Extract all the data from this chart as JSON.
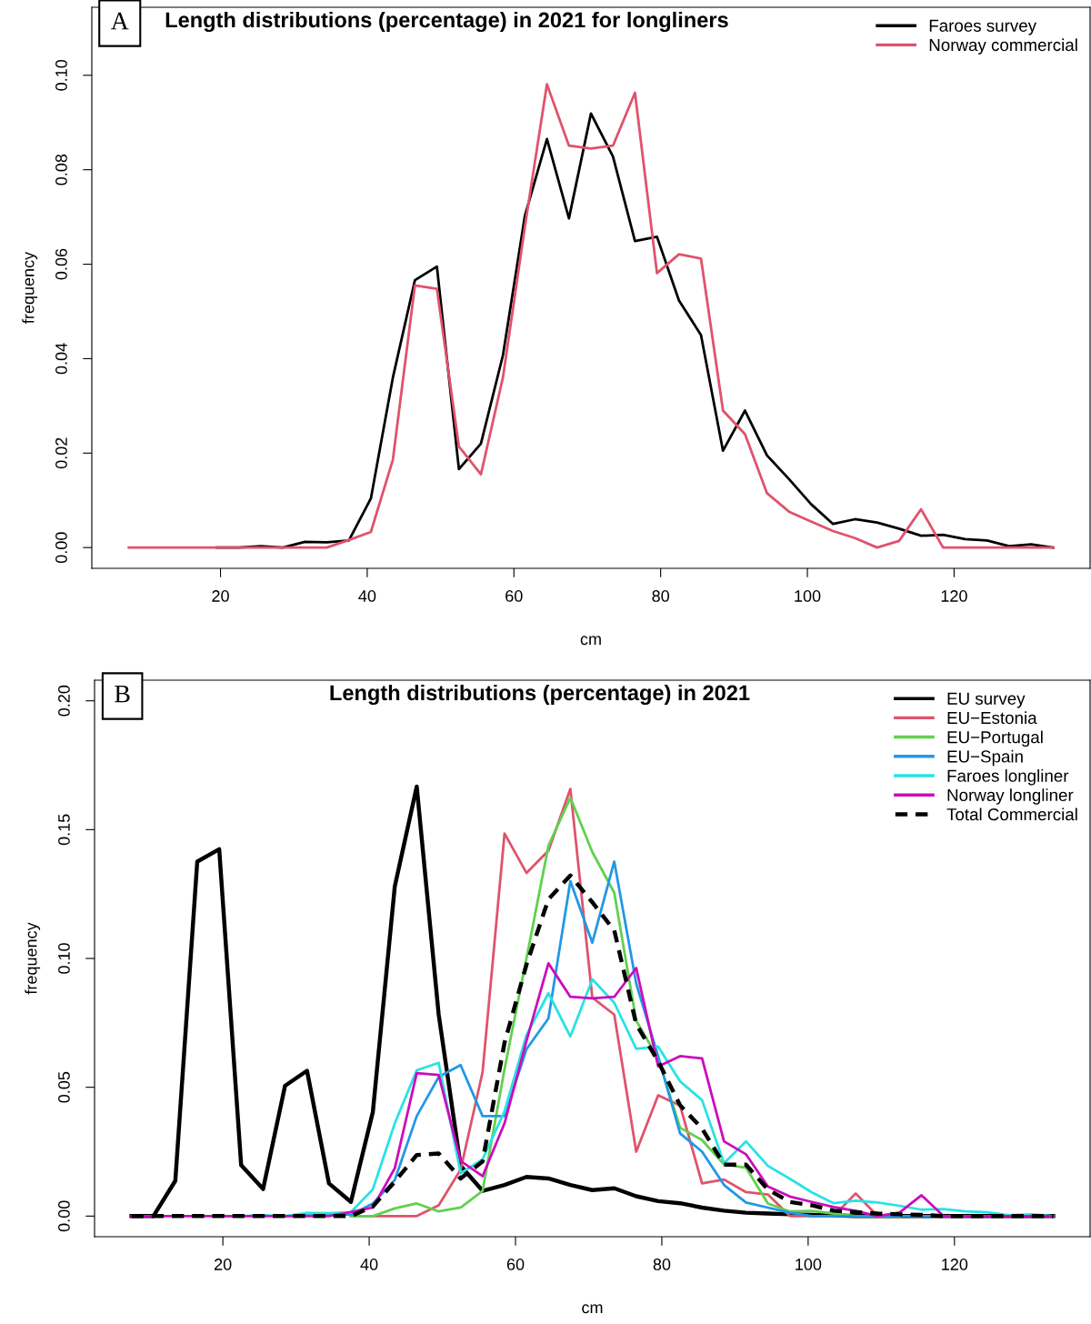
{
  "chart_data": [
    {
      "type": "line",
      "title": "Length distributions (percentage) in 2021 for longliners",
      "xlabel": "cm",
      "ylabel": "frequency",
      "annotations": [
        "A"
      ],
      "legend": "top right",
      "grid": false,
      "marker": "none",
      "x": [
        7.5,
        10.5,
        13.5,
        16.5,
        19.5,
        22.5,
        25.5,
        28.5,
        31.5,
        34.5,
        37.5,
        40.5,
        43.5,
        46.5,
        49.5,
        52.5,
        55.5,
        58.5,
        61.5,
        64.5,
        67.5,
        70.5,
        73.5,
        76.5,
        79.5,
        82.5,
        85.5,
        88.5,
        91.5,
        94.5,
        97.5,
        100.5,
        103.5,
        106.5,
        109.5,
        112.5,
        115.5,
        118.5,
        121.5,
        124.5,
        127.5,
        130.5,
        133.5
      ],
      "xlim": [
        2.46,
        138.54
      ],
      "xticks": [
        20,
        40,
        60,
        80,
        100,
        120
      ],
      "ylim": [
        -0.0044,
        0.1144
      ],
      "yticks": [
        {
          "value": 0,
          "label": "0.00"
        },
        {
          "value": 0.02,
          "label": "0.02"
        },
        {
          "value": 0.04,
          "label": "0.04"
        },
        {
          "value": 0.06,
          "label": "0.06"
        },
        {
          "value": 0.08,
          "label": "0.08"
        },
        {
          "value": 0.1,
          "label": "0.10"
        }
      ],
      "series": [
        {
          "name": "Faroes survey",
          "color": "#000000",
          "line_style": "solid",
          "values": [
            null,
            null,
            null,
            null,
            0,
            0,
            0.0003,
            0,
            0.0012,
            0.0011,
            0.0015,
            0.0104,
            0.036,
            0.0566,
            0.0595,
            0.0166,
            0.022,
            0.0407,
            0.0703,
            0.0865,
            0.0697,
            0.0919,
            0.0828,
            0.0649,
            0.0658,
            0.0523,
            0.045,
            0.0205,
            0.029,
            0.0195,
            0.0145,
            0.0092,
            0.005,
            0.006,
            0.0053,
            0.004,
            0.0025,
            0.0027,
            0.0018,
            0.0015,
            0.0003,
            0.0007,
            0
          ]
        },
        {
          "name": "Norway commercial",
          "color": "#df536b",
          "line_style": "solid",
          "values": [
            0,
            0,
            0,
            0,
            0,
            0,
            0,
            0,
            0,
            0,
            0.0016,
            0.0033,
            0.0186,
            0.0555,
            0.0548,
            0.0214,
            0.0155,
            0.036,
            0.068,
            0.0981,
            0.0851,
            0.0845,
            0.0851,
            0.0963,
            0.0581,
            0.0621,
            0.0612,
            0.029,
            0.024,
            0.0115,
            0.0076,
            0.0055,
            0.0035,
            0.002,
            0,
            0.0014,
            0.0081,
            0,
            0,
            0,
            0,
            0,
            0
          ]
        }
      ]
    },
    {
      "type": "line",
      "title": "Length distributions (percentage) in 2021",
      "xlabel": "cm",
      "ylabel": "frequency",
      "annotations": [
        "B"
      ],
      "legend": "top right",
      "grid": false,
      "marker": "none",
      "x": [
        7.5,
        10.5,
        13.5,
        16.5,
        19.5,
        22.5,
        25.5,
        28.5,
        31.5,
        34.5,
        37.5,
        40.5,
        43.5,
        46.5,
        49.5,
        52.5,
        55.5,
        58.5,
        61.5,
        64.5,
        67.5,
        70.5,
        73.5,
        76.5,
        79.5,
        82.5,
        85.5,
        88.5,
        91.5,
        94.5,
        97.5,
        100.5,
        103.5,
        106.5,
        109.5,
        112.5,
        115.5,
        118.5,
        121.5,
        124.5,
        127.5,
        130.5,
        133.5
      ],
      "xlim": [
        2.46,
        138.54
      ],
      "xticks": [
        20,
        40,
        60,
        80,
        100,
        120
      ],
      "ylim": [
        -0.008,
        0.208
      ],
      "yticks": [
        {
          "value": 0,
          "label": "0.00"
        },
        {
          "value": 0.05,
          "label": "0.05"
        },
        {
          "value": 0.1,
          "label": "0.10"
        },
        {
          "value": 0.15,
          "label": "0.15"
        },
        {
          "value": 0.2,
          "label": "0.20"
        }
      ],
      "series": [
        {
          "name": "EU survey",
          "color": "#000000",
          "line_style": "solid",
          "values": [
            0,
            0,
            0.0137,
            0.1376,
            0.1424,
            0.0198,
            0.0105,
            0.0506,
            0.0564,
            0.0127,
            0.0055,
            0.0404,
            0.128,
            0.1667,
            0.0782,
            0.0195,
            0.0098,
            0.0121,
            0.0152,
            0.0146,
            0.0121,
            0.0101,
            0.0108,
            0.0077,
            0.0058,
            0.005,
            0.0033,
            0.0021,
            0.0013,
            0.001,
            0.0007,
            0.0005,
            0.0003,
            0,
            0,
            0,
            0,
            0,
            0,
            0,
            0,
            0,
            0
          ]
        },
        {
          "name": "EU−Estonia",
          "color": "#df536b",
          "line_style": "solid",
          "values": [
            null,
            null,
            null,
            null,
            null,
            null,
            null,
            null,
            null,
            null,
            0,
            0,
            0,
            0,
            0.0042,
            0.018,
            0.0559,
            0.1485,
            0.1332,
            0.1418,
            0.1658,
            0.0848,
            0.0782,
            0.025,
            0.0469,
            0.0429,
            0.0127,
            0.0142,
            0.0093,
            0.0084,
            0,
            0,
            0,
            0.0088,
            0,
            0,
            null,
            null,
            null,
            null,
            null,
            null,
            null
          ]
        },
        {
          "name": "EU−Portugal",
          "color": "#61d04f",
          "line_style": "solid",
          "values": [
            null,
            null,
            null,
            null,
            null,
            null,
            null,
            null,
            null,
            null,
            0,
            0,
            0.003,
            0.0049,
            0.0018,
            0.0033,
            0.0098,
            0.057,
            0.1,
            0.1437,
            0.1624,
            0.1413,
            0.1255,
            0.0758,
            0.0612,
            0.0343,
            0.0295,
            0.02,
            0.0188,
            0.0049,
            0.0018,
            0.002,
            0.001,
            0,
            0,
            0,
            null,
            null,
            null,
            null,
            null,
            null,
            null
          ]
        },
        {
          "name": "EU−Spain",
          "color": "#2297e6",
          "line_style": "solid",
          "values": [
            null,
            null,
            null,
            null,
            null,
            null,
            null,
            0,
            0.0005,
            0.001,
            0.0005,
            0.0049,
            0.014,
            0.0388,
            0.054,
            0.0586,
            0.0388,
            0.0388,
            0.0648,
            0.0767,
            0.13,
            0.1061,
            0.1376,
            0.0903,
            0.062,
            0.0321,
            0.025,
            0.0121,
            0.0053,
            0.0033,
            0.0013,
            0,
            0,
            0,
            0,
            0,
            0,
            0,
            0,
            null,
            null,
            null,
            null
          ]
        },
        {
          "name": "Faroes longliner",
          "color": "#28e2e5",
          "line_style": "solid",
          "values": [
            null,
            null,
            null,
            null,
            0,
            0,
            0.0003,
            0,
            0.0012,
            0.0011,
            0.0015,
            0.0104,
            0.036,
            0.0566,
            0.0595,
            0.0166,
            0.022,
            0.0407,
            0.0703,
            0.0865,
            0.0697,
            0.0919,
            0.0828,
            0.0649,
            0.0658,
            0.0523,
            0.045,
            0.0205,
            0.029,
            0.0195,
            0.0145,
            0.0092,
            0.005,
            0.006,
            0.0053,
            0.004,
            0.0025,
            0.0027,
            0.0018,
            0.0015,
            0.0003,
            0.0007,
            0
          ]
        },
        {
          "name": "Norway longliner",
          "color": "#cd0bbc",
          "line_style": "solid",
          "values": [
            0,
            0,
            0,
            0,
            0,
            0,
            0,
            0,
            0,
            0,
            0.0016,
            0.0033,
            0.0186,
            0.0555,
            0.0548,
            0.0214,
            0.0155,
            0.036,
            0.068,
            0.0981,
            0.0851,
            0.0845,
            0.0851,
            0.0963,
            0.0581,
            0.0621,
            0.0612,
            0.029,
            0.024,
            0.0115,
            0.0076,
            0.0055,
            0.0035,
            0.002,
            0,
            0.0014,
            0.0081,
            0,
            0,
            0,
            0,
            0,
            0
          ]
        },
        {
          "name": "Total Commercial",
          "color": "#000000",
          "line_style": "dashed",
          "values": [
            0,
            0,
            0,
            0,
            0,
            0,
            0,
            0,
            0,
            0,
            0,
            0.0037,
            0.0134,
            0.0237,
            0.0243,
            0.0146,
            0.0212,
            0.0673,
            0.0976,
            0.123,
            0.1322,
            0.1218,
            0.1109,
            0.0745,
            0.0601,
            0.043,
            0.034,
            0.02,
            0.02,
            0.0103,
            0.0055,
            0.0042,
            0.0021,
            0.0015,
            0.001,
            0.0007,
            0.0005,
            0,
            0,
            0,
            0,
            0,
            0
          ]
        }
      ]
    }
  ]
}
